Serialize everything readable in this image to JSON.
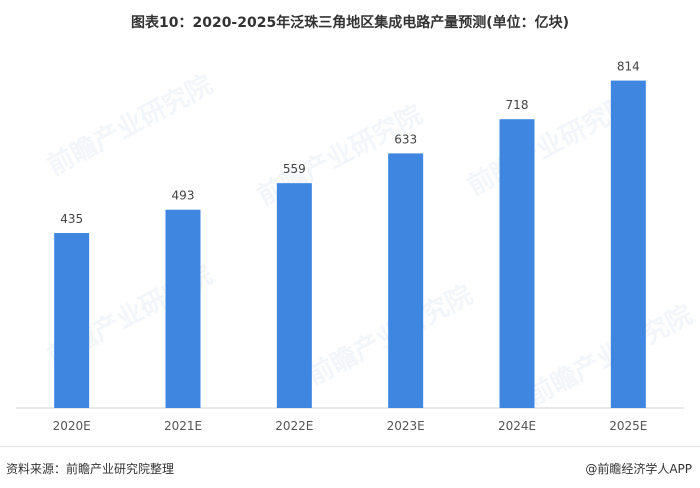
{
  "title": "图表10：2020-2025年泛珠三角地区集成电路产量预测(单位：亿块)",
  "watermark": "前瞻产业研究院",
  "footer": {
    "source": "资料来源：前瞻产业研究院整理",
    "brand": "@前瞻经济学人APP"
  },
  "chart_data": {
    "type": "bar",
    "title": "图表10：2020-2025年泛珠三角地区集成电路产量预测(单位：亿块)",
    "categories": [
      "2020E",
      "2021E",
      "2022E",
      "2023E",
      "2024E",
      "2025E"
    ],
    "values": [
      435,
      493,
      559,
      633,
      718,
      814
    ],
    "xlabel": "",
    "ylabel": "",
    "ylim": [
      0,
      900
    ],
    "bar_color": "#3f86e0",
    "grid": false,
    "legend": "none",
    "data_labels": true
  }
}
